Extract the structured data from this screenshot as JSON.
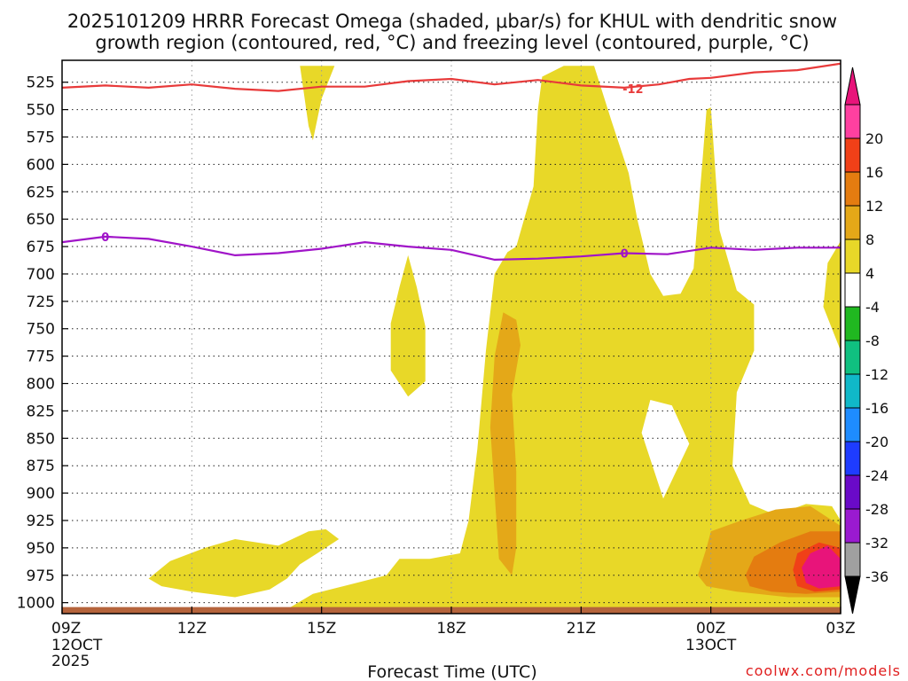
{
  "chart_data": {
    "type": "time-height cross-section (filled contour)",
    "title_line1": "2025101209 HRRR Forecast Omega (shaded, μbar/s) for KHUL with dendritic snow",
    "title_line2": "growth region (contoured, red, °C) and freezing level (contoured, purple, °C)",
    "xlabel": "Forecast Time (UTC)",
    "credit": "coolwx.com/models",
    "x_hours": [
      9,
      27
    ],
    "y_range_mb": [
      1010,
      505
    ],
    "x_ticks": [
      {
        "hour": 9,
        "label": "09Z",
        "sub1": "12OCT",
        "sub2": "2025"
      },
      {
        "hour": 12,
        "label": "12Z"
      },
      {
        "hour": 15,
        "label": "15Z"
      },
      {
        "hour": 18,
        "label": "18Z"
      },
      {
        "hour": 21,
        "label": "21Z"
      },
      {
        "hour": 24,
        "label": "00Z",
        "sub1": "13OCT"
      },
      {
        "hour": 27,
        "label": "03Z"
      }
    ],
    "y_ticks": [
      525,
      550,
      575,
      600,
      625,
      650,
      675,
      700,
      725,
      750,
      775,
      800,
      825,
      850,
      875,
      900,
      925,
      950,
      975,
      1000
    ],
    "colorbar": {
      "levels": [
        "-36",
        "-32",
        "-28",
        "-24",
        "-20",
        "-16",
        "-12",
        "-8",
        "-4",
        "4",
        "8",
        "12",
        "16",
        "20"
      ],
      "colors": [
        "#000000",
        "#a0a0a0",
        "#9a1ad0",
        "#6a0ac8",
        "#1e3cff",
        "#1e8cff",
        "#10b8c8",
        "#10c080",
        "#20b820",
        "#ffffff",
        "#e8d828",
        "#e4a818",
        "#e47c10",
        "#f04018",
        "#ff40a0",
        "#e8147a"
      ]
    },
    "shaded_regions": [
      {
        "name": "omega-4-8",
        "color": "#e8d828",
        "points": [
          [
            17.0,
            683
          ],
          [
            16.8,
            712
          ],
          [
            16.6,
            745
          ],
          [
            16.6,
            788
          ],
          [
            17.0,
            812
          ],
          [
            17.4,
            798
          ],
          [
            17.4,
            748
          ],
          [
            17.2,
            712
          ]
        ]
      },
      {
        "name": "omega-4-8",
        "color": "#e8d828",
        "points": [
          [
            14.5,
            510
          ],
          [
            14.7,
            565
          ],
          [
            14.8,
            578
          ],
          [
            15.0,
            540
          ],
          [
            15.3,
            510
          ]
        ]
      },
      {
        "name": "omega-4-8",
        "color": "#e8d828",
        "points": [
          [
            11.0,
            978
          ],
          [
            11.5,
            962
          ],
          [
            12.3,
            950
          ],
          [
            13.0,
            942
          ],
          [
            14.0,
            948
          ],
          [
            14.7,
            935
          ],
          [
            15.1,
            933
          ],
          [
            15.4,
            942
          ],
          [
            14.9,
            955
          ],
          [
            14.5,
            965
          ],
          [
            14.2,
            978
          ],
          [
            13.8,
            988
          ],
          [
            13.0,
            995
          ],
          [
            12.0,
            990
          ],
          [
            11.3,
            985
          ]
        ]
      },
      {
        "name": "omega-4-8",
        "color": "#e8d828",
        "points": [
          [
            20.6,
            510
          ],
          [
            21.3,
            510
          ],
          [
            21.7,
            560
          ],
          [
            22.1,
            608
          ],
          [
            22.3,
            650
          ],
          [
            22.6,
            700
          ],
          [
            22.9,
            720
          ],
          [
            23.3,
            718
          ],
          [
            23.6,
            695
          ],
          [
            23.8,
            600
          ],
          [
            23.9,
            550
          ],
          [
            24.0,
            548
          ],
          [
            24.2,
            660
          ],
          [
            24.6,
            715
          ],
          [
            25.0,
            728
          ],
          [
            25.0,
            770
          ],
          [
            24.6,
            808
          ],
          [
            24.5,
            875
          ],
          [
            24.9,
            910
          ],
          [
            25.5,
            920
          ],
          [
            26.2,
            910
          ],
          [
            26.8,
            912
          ],
          [
            27.0,
            925
          ],
          [
            27.0,
            1006
          ],
          [
            14.2,
            1006
          ],
          [
            14.8,
            992
          ],
          [
            15.5,
            985
          ],
          [
            16.5,
            975
          ],
          [
            16.8,
            960
          ],
          [
            17.5,
            960
          ],
          [
            18.2,
            955
          ],
          [
            18.4,
            925
          ],
          [
            18.6,
            860
          ],
          [
            18.8,
            770
          ],
          [
            19.0,
            700
          ],
          [
            19.3,
            680
          ],
          [
            19.5,
            675
          ],
          [
            19.9,
            620
          ],
          [
            20.0,
            550
          ],
          [
            20.1,
            520
          ]
        ]
      },
      {
        "name": "omega-4-8",
        "color": "#e8d828",
        "points": [
          [
            27.0,
            670
          ],
          [
            26.7,
            690
          ],
          [
            26.6,
            730
          ],
          [
            27.0,
            770
          ]
        ]
      },
      {
        "name": "omega-8-12",
        "color": "#e4a818",
        "points": [
          [
            19.2,
            735
          ],
          [
            19.0,
            775
          ],
          [
            18.9,
            840
          ],
          [
            19.0,
            900
          ],
          [
            19.1,
            960
          ],
          [
            19.4,
            975
          ],
          [
            19.5,
            950
          ],
          [
            19.5,
            880
          ],
          [
            19.4,
            810
          ],
          [
            19.6,
            765
          ],
          [
            19.5,
            742
          ]
        ]
      },
      {
        "name": "omega-8-12",
        "color": "#e4a818",
        "points": [
          [
            24.0,
            935
          ],
          [
            24.7,
            925
          ],
          [
            25.5,
            915
          ],
          [
            26.3,
            912
          ],
          [
            27.0,
            930
          ],
          [
            27.0,
            995
          ],
          [
            25.8,
            995
          ],
          [
            24.6,
            990
          ],
          [
            23.9,
            985
          ],
          [
            23.7,
            975
          ],
          [
            23.9,
            950
          ]
        ]
      },
      {
        "name": "omega-12-16",
        "color": "#e47c10",
        "points": [
          [
            24.8,
            975
          ],
          [
            25.0,
            958
          ],
          [
            25.6,
            945
          ],
          [
            26.3,
            935
          ],
          [
            27.0,
            935
          ],
          [
            27.0,
            990
          ],
          [
            26.2,
            992
          ],
          [
            25.4,
            990
          ],
          [
            24.9,
            985
          ]
        ]
      },
      {
        "name": "omega-16-20",
        "color": "#f04018",
        "points": [
          [
            25.9,
            970
          ],
          [
            26.0,
            955
          ],
          [
            26.5,
            945
          ],
          [
            27.0,
            950
          ],
          [
            27.0,
            988
          ],
          [
            26.4,
            990
          ],
          [
            26.0,
            985
          ]
        ]
      },
      {
        "name": "omega-20plus",
        "color": "#e8147a",
        "points": [
          [
            26.1,
            968
          ],
          [
            26.3,
            955
          ],
          [
            26.7,
            948
          ],
          [
            27.0,
            960
          ],
          [
            27.0,
            985
          ],
          [
            26.5,
            987
          ],
          [
            26.2,
            982
          ]
        ]
      },
      {
        "name": "terrain",
        "color": "#b5643c",
        "points": [
          [
            9.0,
            1004
          ],
          [
            27.0,
            1004
          ],
          [
            27.0,
            1010
          ],
          [
            9.0,
            1010
          ]
        ]
      }
    ],
    "hole_regions": [
      {
        "name": "clear-gap",
        "color": "#ffffff",
        "points": [
          [
            22.6,
            815
          ],
          [
            22.4,
            845
          ],
          [
            22.9,
            905
          ],
          [
            23.2,
            880
          ],
          [
            23.5,
            855
          ],
          [
            23.1,
            820
          ]
        ]
      },
      {
        "name": "clear-gap",
        "color": "#ffffff",
        "points": [
          [
            15.1,
            960
          ],
          [
            15.6,
            948
          ],
          [
            16.3,
            950
          ],
          [
            16.2,
            967
          ],
          [
            15.5,
            972
          ]
        ]
      }
    ],
    "contours": [
      {
        "name": "dendritic-contour",
        "label": "-12",
        "label_at": [
          22.2,
          531
        ],
        "color": "#e83a3a",
        "points": [
          [
            9.0,
            530
          ],
          [
            10.0,
            528
          ],
          [
            11.0,
            530
          ],
          [
            12.0,
            527
          ],
          [
            13.0,
            531
          ],
          [
            14.0,
            533
          ],
          [
            15.0,
            529
          ],
          [
            16.0,
            529
          ],
          [
            17.0,
            524
          ],
          [
            18.0,
            522
          ],
          [
            19.0,
            527
          ],
          [
            20.0,
            523
          ],
          [
            21.0,
            528
          ],
          [
            22.0,
            530
          ],
          [
            22.8,
            527
          ],
          [
            23.5,
            522
          ],
          [
            24.0,
            521
          ],
          [
            25.0,
            516
          ],
          [
            26.0,
            514
          ],
          [
            27.0,
            508
          ]
        ]
      },
      {
        "name": "freezing-level-contour",
        "label": "0",
        "label_at": [
          10.0,
          666
        ],
        "color": "#a014c8",
        "points": [
          [
            9.0,
            671
          ],
          [
            10.0,
            666
          ],
          [
            11.0,
            668
          ],
          [
            12.0,
            675
          ],
          [
            13.0,
            683
          ],
          [
            14.0,
            681
          ],
          [
            15.0,
            677
          ],
          [
            16.0,
            671
          ],
          [
            17.0,
            675
          ],
          [
            18.0,
            678
          ],
          [
            19.0,
            687
          ],
          [
            20.0,
            686
          ],
          [
            21.0,
            684
          ],
          [
            22.0,
            681
          ],
          [
            23.0,
            682
          ],
          [
            24.0,
            676
          ],
          [
            25.0,
            678
          ],
          [
            26.0,
            676
          ],
          [
            27.0,
            676
          ]
        ]
      },
      {
        "name": "freezing-level-contour-label",
        "label": "0",
        "label_at": [
          22.0,
          681
        ],
        "color": "#a014c8",
        "points": []
      }
    ]
  }
}
